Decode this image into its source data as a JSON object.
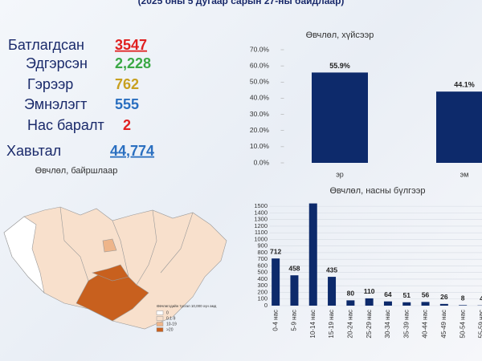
{
  "header": {
    "subtitle": "(2025 оны 5 дугаар сарын 27-ны байдлаар)"
  },
  "stats": [
    {
      "label": "Батлагдсан",
      "value": "3547",
      "color": "#e02020",
      "underline": true
    },
    {
      "label": "Эдгэрсэн",
      "value": "2,228",
      "color": "#3aa845",
      "underline": false
    },
    {
      "label": "Гэрээр",
      "value": "762",
      "color": "#c8a020",
      "underline": false
    },
    {
      "label": "Эмнэлэгт",
      "value": "555",
      "color": "#2a6fc0",
      "underline": false
    },
    {
      "label": "Нас баралт",
      "value": "2",
      "color": "#e02020",
      "underline": false
    },
    {
      "label": "Хавьтал",
      "value": "44,774",
      "color": "#2a6fc0",
      "underline": true
    }
  ],
  "map": {
    "title": "Өвчлөл, байршлаар",
    "legend_title": "Өвчлөгсдийн тусгал 10,000 хүн амд",
    "legend": [
      {
        "label": "0",
        "color": "#ffffff"
      },
      {
        "label": "0.1-9",
        "color": "#f8e0cc"
      },
      {
        "label": "10-19",
        "color": "#eeb58a"
      },
      {
        "label": ">20",
        "color": "#c8601e"
      }
    ]
  },
  "chart_data": [
    {
      "type": "bar",
      "title": "Өвчлөл, хүйсээр",
      "categories": [
        "эр",
        "эм"
      ],
      "values": [
        55.9,
        44.1
      ],
      "value_labels": [
        "55.9%",
        "44.1%"
      ],
      "color": "#0d2a6b",
      "ylim": [
        0,
        70
      ],
      "yticks": [
        {
          "value": 0,
          "label": "0.0%"
        },
        {
          "value": 10,
          "label": "10.0%"
        },
        {
          "value": 20,
          "label": "20.0%"
        },
        {
          "value": 30,
          "label": "30.0%"
        },
        {
          "value": 40,
          "label": "40.0%"
        },
        {
          "value": 50,
          "label": "50.0%"
        },
        {
          "value": 60,
          "label": "60.0%"
        },
        {
          "value": 70,
          "label": "70.0%"
        }
      ],
      "grid": false
    },
    {
      "type": "bar",
      "title": "Өвчлөл, насны бүлгээр",
      "categories": [
        "0-4 нас",
        "5-9 нас",
        "10-14 нас",
        "15-19 нас",
        "20-24 нас",
        "25-29 нас",
        "30-34 нас",
        "35-39 нас",
        "40-44 нас",
        "45-49 нас",
        "50-54 нас",
        "55-59 нас"
      ],
      "values": [
        712,
        458,
        1543,
        435,
        80,
        110,
        64,
        51,
        56,
        26,
        8,
        4
      ],
      "value_labels": [
        "712",
        "458",
        null,
        "435",
        "80",
        "110",
        "64",
        "51",
        "56",
        "26",
        "8",
        "4"
      ],
      "color": "#0d2a6b",
      "ylim": [
        0,
        1550
      ],
      "yticks": [
        0,
        100,
        200,
        300,
        400,
        500,
        600,
        700,
        800,
        900,
        1000,
        1100,
        1200,
        1300,
        1400,
        1500
      ],
      "grid": true
    }
  ]
}
